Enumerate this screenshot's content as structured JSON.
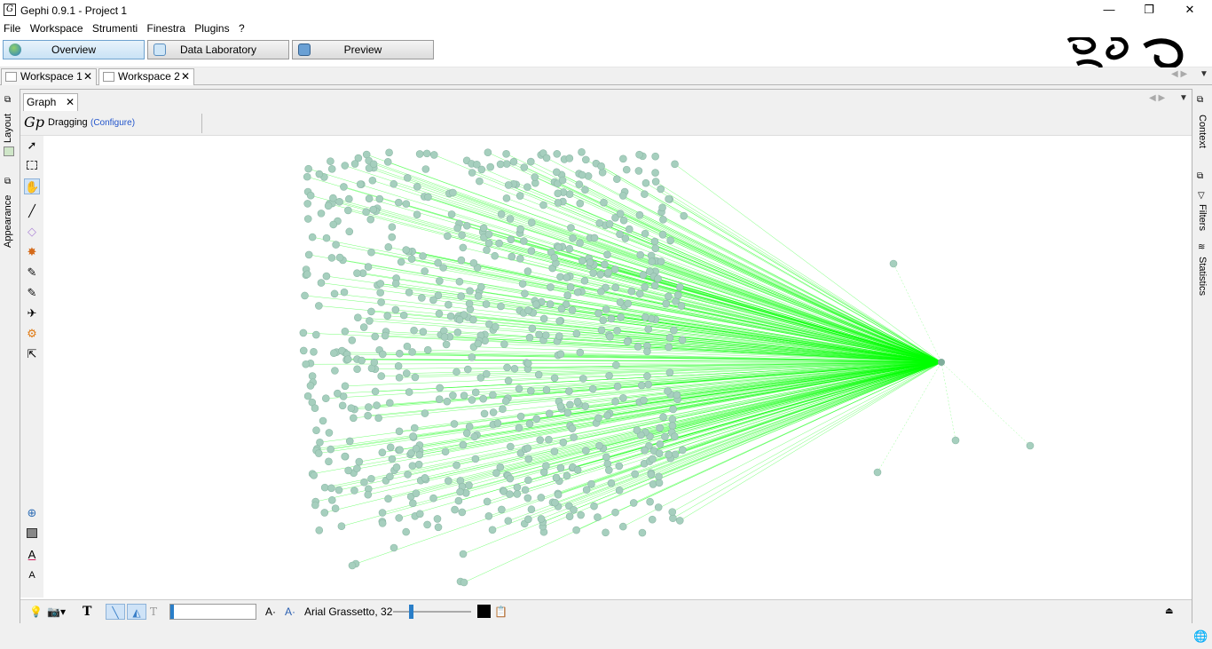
{
  "window": {
    "title": "Gephi 0.9.1 - Project 1",
    "minimize": "—",
    "restore": "❐",
    "close": "✕"
  },
  "menu": [
    "File",
    "Workspace",
    "Strumenti",
    "Finestra",
    "Plugins",
    "?"
  ],
  "modes": [
    {
      "label": "Overview",
      "active": true
    },
    {
      "label": "Data Laboratory",
      "active": false
    },
    {
      "label": "Preview",
      "active": false
    }
  ],
  "workspaces": [
    {
      "label": "Workspace 1",
      "close": "✕"
    },
    {
      "label": "Workspace 2",
      "close": "✕"
    }
  ],
  "left_rail": {
    "layout": "Layout",
    "appearance": "Appearance"
  },
  "right_rail": {
    "context": "Context",
    "filters": "Filters",
    "statistics": "Statistics"
  },
  "graph_panel": {
    "tab_label": "Graph",
    "tab_close": "✕",
    "mode": "Dragging",
    "configure": "(Configure)"
  },
  "bottom_toolbar": {
    "font_label": "Arial Grassetto, 32",
    "font_size_btn": "A·",
    "font_color_btn": "A·",
    "text_tool": "T"
  },
  "colors": {
    "node": "#a6cfbe",
    "node_stroke": "#8cb8a6",
    "edge": "#00ff00",
    "hub": "#7fae9b",
    "accent": "#3a7fc8"
  },
  "graph": {
    "hub": {
      "label": ""
    },
    "node_count_estimate": 700
  }
}
